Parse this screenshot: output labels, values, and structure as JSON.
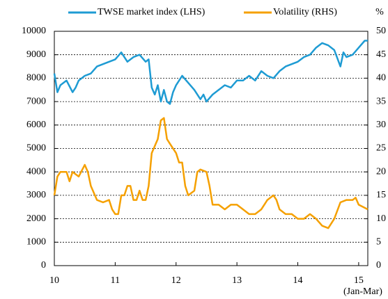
{
  "chart_data": {
    "type": "line",
    "xlim": [
      10,
      15.15
    ],
    "xticks": [
      10,
      11,
      12,
      13,
      14,
      15
    ],
    "ylim": [
      0,
      10000
    ],
    "yticks": [
      0,
      1000,
      2000,
      3000,
      4000,
      5000,
      6000,
      7000,
      8000,
      9000,
      10000
    ],
    "y2lim": [
      0,
      50
    ],
    "y2ticks": [
      0,
      5,
      10,
      15,
      20,
      25,
      30,
      35,
      40,
      45,
      50
    ],
    "y2_label": "%",
    "annotation": "(Jan-Mar)",
    "grid": true,
    "legend": "top",
    "series": [
      {
        "name": "TWSE market index (LHS)",
        "color": "#1e9bd3",
        "x": [
          10.0,
          10.05,
          10.1,
          10.2,
          10.3,
          10.35,
          10.4,
          10.5,
          10.6,
          10.7,
          10.8,
          10.9,
          11.0,
          11.1,
          11.2,
          11.3,
          11.4,
          11.5,
          11.55,
          11.6,
          11.65,
          11.7,
          11.75,
          11.8,
          11.85,
          11.9,
          11.95,
          12.0,
          12.1,
          12.2,
          12.3,
          12.4,
          12.45,
          12.5,
          12.6,
          12.7,
          12.8,
          12.9,
          13.0,
          13.1,
          13.2,
          13.3,
          13.4,
          13.5,
          13.6,
          13.7,
          13.8,
          13.9,
          14.0,
          14.1,
          14.2,
          14.3,
          14.4,
          14.5,
          14.6,
          14.7,
          14.75,
          14.8,
          14.9,
          15.0,
          15.1,
          15.15
        ],
        "values": [
          8200,
          7400,
          7700,
          7900,
          7400,
          7600,
          7900,
          8100,
          8200,
          8500,
          8600,
          8700,
          8800,
          9100,
          8700,
          8900,
          9000,
          8700,
          8800,
          7600,
          7300,
          7700,
          7000,
          7500,
          7000,
          6900,
          7400,
          7700,
          8100,
          7800,
          7500,
          7100,
          7300,
          7000,
          7300,
          7500,
          7700,
          7600,
          7900,
          7900,
          8100,
          7900,
          8300,
          8100,
          8000,
          8300,
          8500,
          8600,
          8700,
          8900,
          9000,
          9300,
          9500,
          9400,
          9200,
          8500,
          9100,
          8900,
          9000,
          9300,
          9600,
          9600
        ]
      },
      {
        "name": "Volatility (RHS)",
        "color": "#f5a000",
        "axis": "y2",
        "x": [
          10.0,
          10.05,
          10.1,
          10.2,
          10.25,
          10.3,
          10.4,
          10.5,
          10.55,
          10.6,
          10.7,
          10.8,
          10.9,
          10.95,
          11.0,
          11.05,
          11.1,
          11.15,
          11.2,
          11.25,
          11.3,
          11.35,
          11.4,
          11.45,
          11.5,
          11.55,
          11.6,
          11.7,
          11.75,
          11.8,
          11.85,
          11.9,
          12.0,
          12.05,
          12.1,
          12.15,
          12.2,
          12.3,
          12.35,
          12.4,
          12.5,
          12.55,
          12.6,
          12.7,
          12.8,
          12.9,
          13.0,
          13.1,
          13.2,
          13.3,
          13.4,
          13.5,
          13.6,
          13.65,
          13.7,
          13.8,
          13.9,
          14.0,
          14.1,
          14.2,
          14.3,
          14.4,
          14.5,
          14.55,
          14.6,
          14.7,
          14.8,
          14.9,
          14.95,
          15.0,
          15.15
        ],
        "values": [
          15,
          19,
          20,
          20,
          18,
          20,
          19,
          21.5,
          20,
          17,
          14,
          13.5,
          14,
          12,
          11,
          11,
          15,
          15,
          17,
          17,
          14,
          14,
          16,
          14,
          14,
          17,
          24,
          27,
          31,
          31.5,
          27,
          26,
          24,
          22,
          22,
          17,
          15,
          16,
          20,
          20.5,
          20,
          17,
          13,
          13,
          12,
          13,
          13,
          12,
          11,
          11,
          12,
          14,
          15,
          14,
          12,
          11,
          11,
          10,
          10,
          11,
          10,
          8.5,
          8,
          9,
          10,
          13.5,
          14,
          14,
          14.5,
          13,
          12
        ]
      }
    ]
  }
}
